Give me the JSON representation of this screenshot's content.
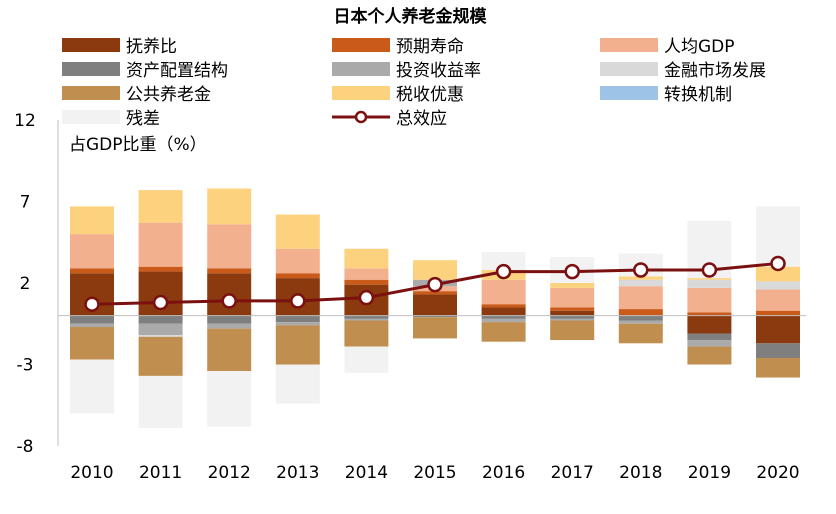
{
  "chart_data": {
    "type": "stacked-bar-with-line",
    "title": "日本个人养老金规模",
    "ylabel": "占GDP比重（%）",
    "ylim": [
      -8,
      12
    ],
    "yticks": [
      12,
      7,
      2,
      -3,
      -8
    ],
    "categories": [
      "2010",
      "2011",
      "2012",
      "2013",
      "2014",
      "2015",
      "2016",
      "2017",
      "2018",
      "2019",
      "2020"
    ],
    "series": [
      {
        "name": "抚养比",
        "color": "#8B3A0F",
        "values": [
          2.6,
          2.7,
          2.6,
          2.3,
          1.9,
          1.3,
          0.5,
          0.3,
          0.0,
          -1.1,
          -1.7
        ]
      },
      {
        "name": "预期寿命",
        "color": "#C95A1A",
        "values": [
          0.3,
          0.3,
          0.3,
          0.3,
          0.3,
          0.2,
          0.2,
          0.2,
          0.4,
          0.2,
          0.3
        ]
      },
      {
        "name": "人均GDP",
        "color": "#F3B08E",
        "values": [
          2.1,
          2.7,
          2.7,
          1.5,
          0.7,
          0.3,
          1.5,
          1.2,
          1.4,
          1.5,
          1.3
        ]
      },
      {
        "name": "资产配置结构",
        "color": "#7F7F7F",
        "values": [
          -0.5,
          -0.5,
          -0.5,
          -0.4,
          -0.2,
          -0.1,
          -0.2,
          -0.2,
          -0.3,
          -0.4,
          -0.9
        ]
      },
      {
        "name": "投资收益率",
        "color": "#AAAAAA",
        "values": [
          -0.2,
          -0.7,
          -0.3,
          -0.2,
          -0.1,
          0.4,
          -0.2,
          -0.1,
          -0.2,
          -0.4,
          0.0
        ]
      },
      {
        "name": "金融市场发展",
        "color": "#D9D9D9",
        "values": [
          0.0,
          -0.1,
          0.0,
          0.0,
          0.0,
          0.0,
          0.0,
          0.0,
          0.4,
          0.5,
          0.5
        ]
      },
      {
        "name": "公共养老金",
        "color": "#C08F50",
        "values": [
          -2.0,
          -2.4,
          -2.6,
          -2.4,
          -1.6,
          -1.3,
          -1.2,
          -1.2,
          -1.2,
          -1.1,
          -1.2
        ]
      },
      {
        "name": "税收优惠",
        "color": "#FDD27E",
        "values": [
          1.7,
          2.0,
          2.2,
          2.1,
          1.2,
          1.2,
          0.6,
          0.3,
          0.2,
          0.1,
          0.9
        ]
      },
      {
        "name": "转换机制",
        "color": "#9DC3E6",
        "values": [
          0,
          0,
          0,
          0,
          0,
          0,
          0,
          0,
          0,
          0,
          0
        ]
      },
      {
        "name": "残差",
        "color": "#F2F2F2",
        "values": [
          -3.3,
          -3.2,
          -3.4,
          -2.4,
          -1.6,
          0.0,
          1.1,
          1.6,
          1.4,
          3.5,
          3.7
        ]
      }
    ],
    "line": {
      "name": "总效应",
      "color": "#7B1010",
      "values": [
        0.7,
        0.8,
        0.9,
        0.9,
        1.1,
        1.9,
        2.7,
        2.7,
        2.8,
        2.8,
        3.2
      ]
    }
  }
}
